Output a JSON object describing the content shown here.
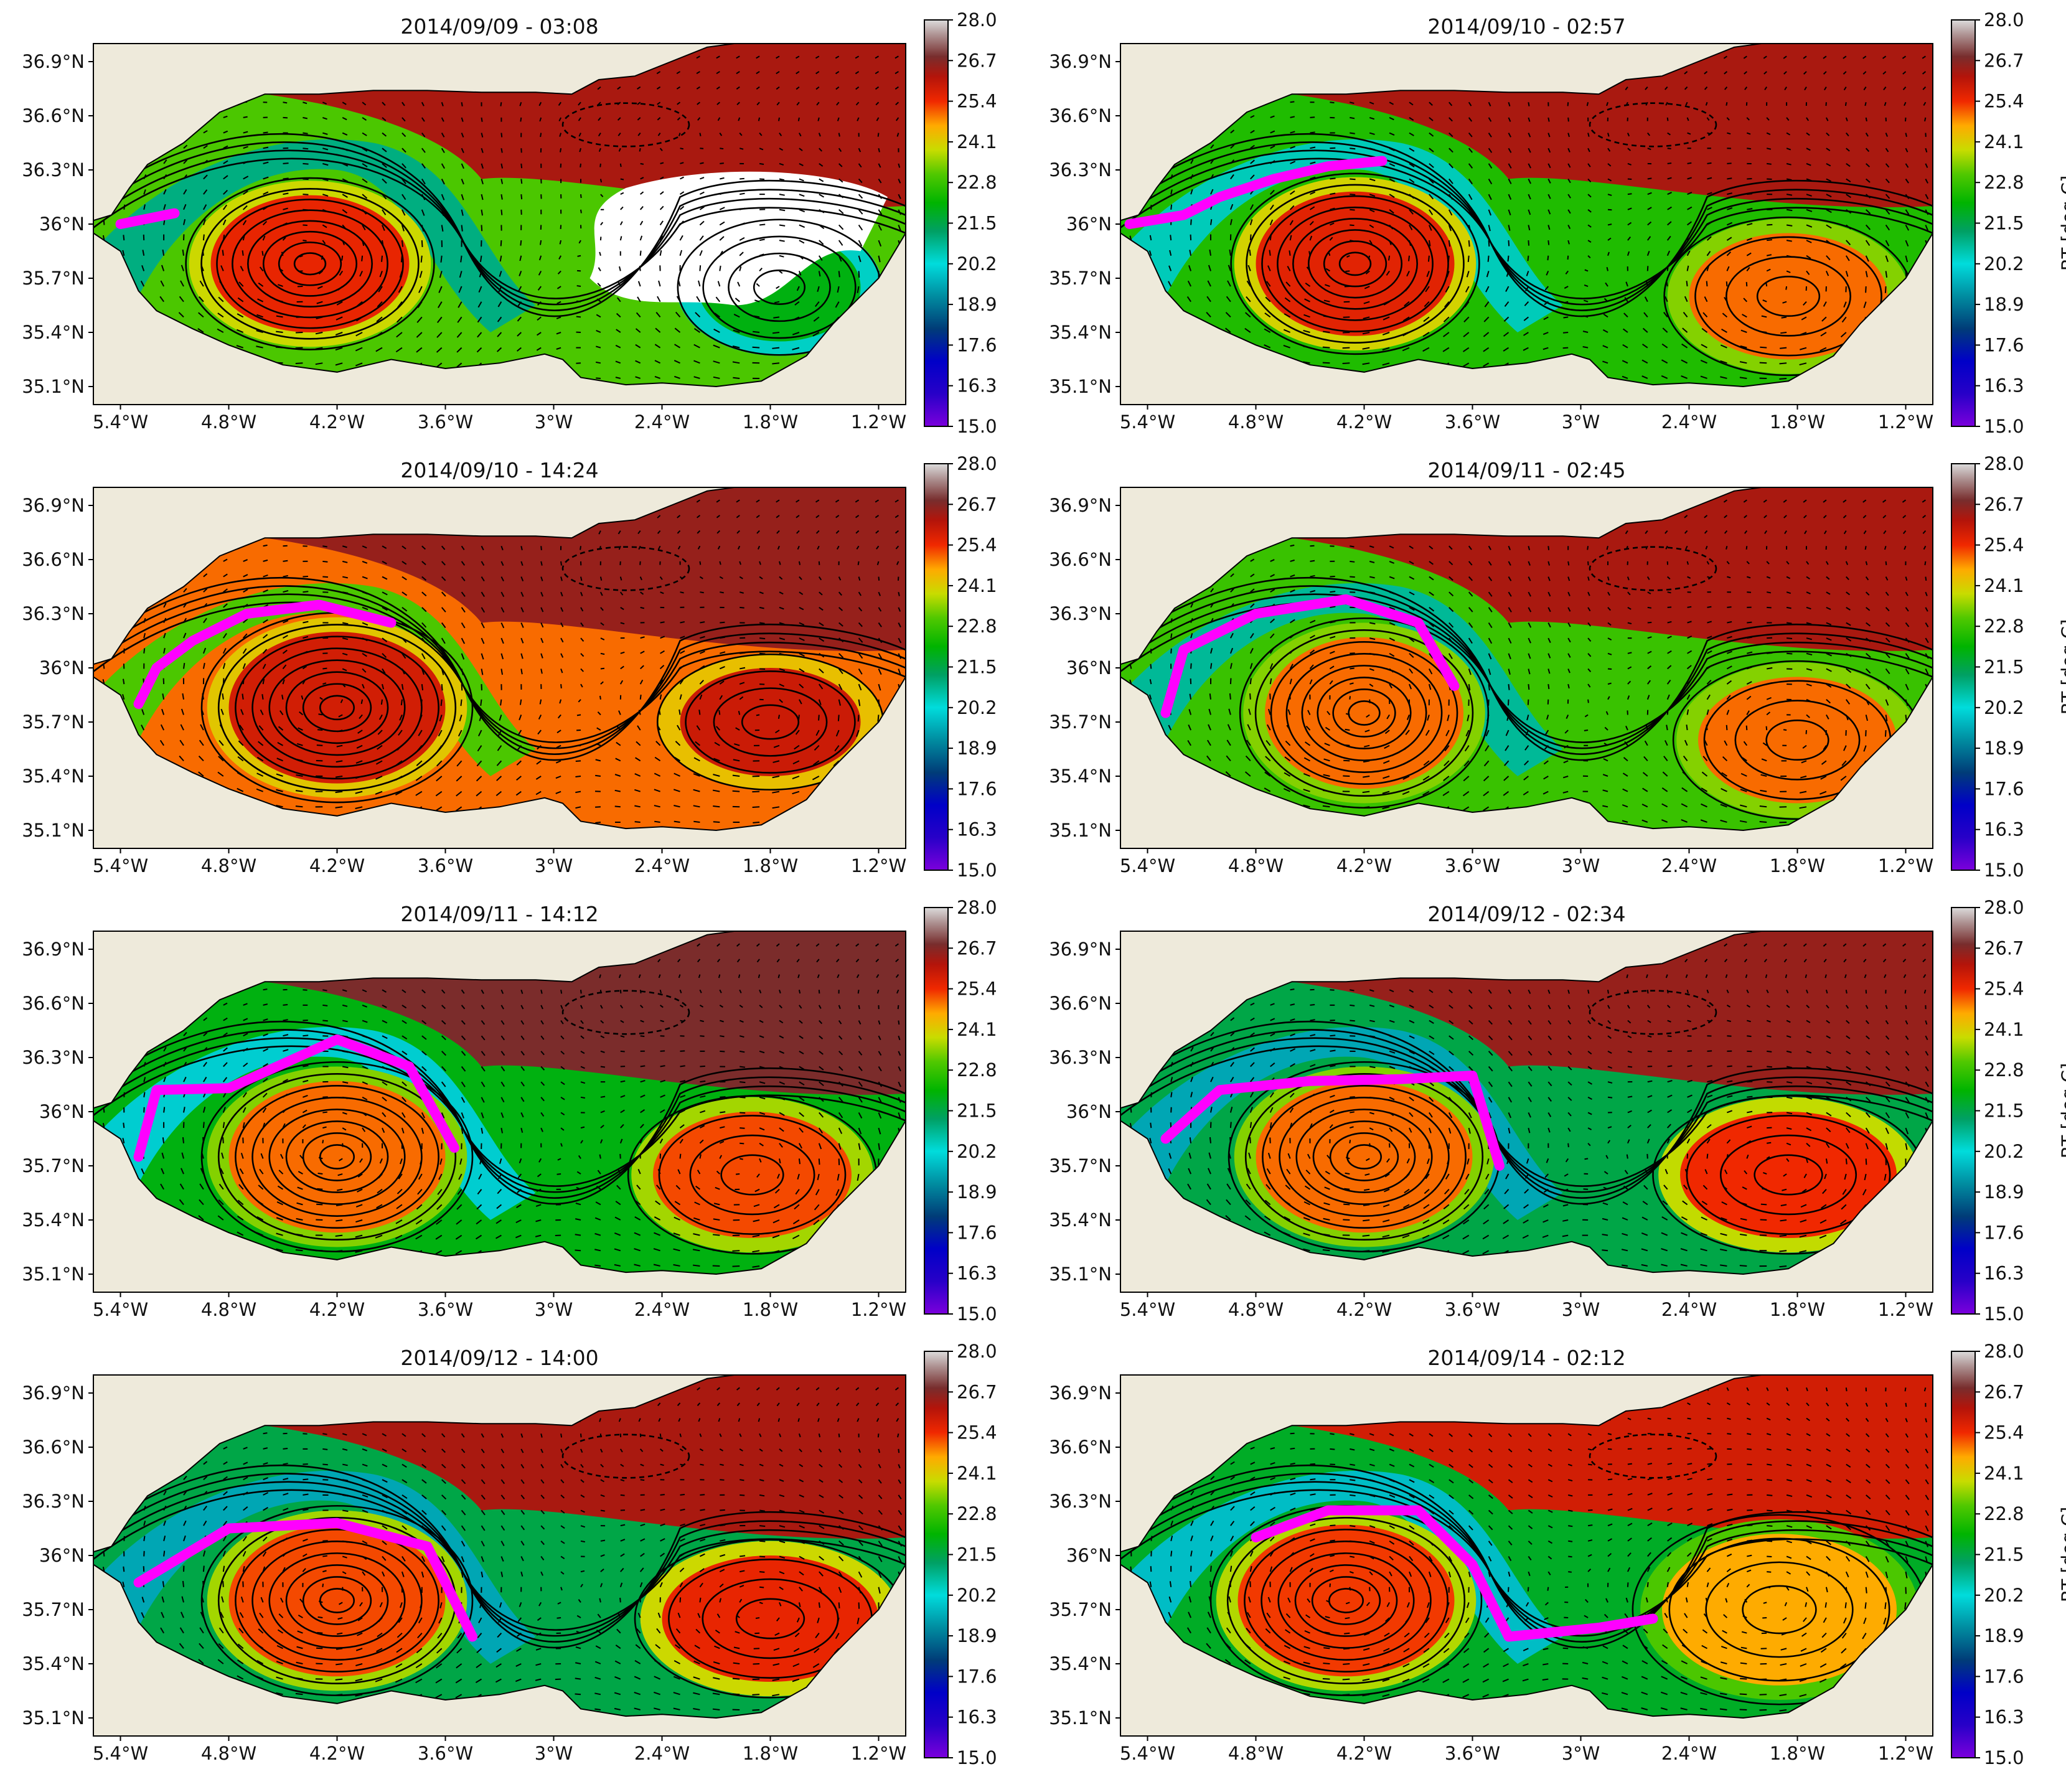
{
  "figure": {
    "colorbar_label": "BT [deg C]",
    "colorbar_ticks": [
      "28.0",
      "26.7",
      "25.4",
      "24.1",
      "22.8",
      "21.5",
      "20.2",
      "18.9",
      "17.6",
      "16.3",
      "15.0"
    ],
    "x_ticks": [
      "5.4°W",
      "4.8°W",
      "4.2°W",
      "3.6°W",
      "3°W",
      "2.4°W",
      "1.8°W",
      "1.2°W"
    ],
    "y_ticks": [
      "36.9°N",
      "36.6°N",
      "36.3°N",
      "36°N",
      "35.7°N",
      "35.4°N",
      "35.1°N"
    ],
    "colors": {
      "land": "#eeeadb",
      "drifter": "#ff00ff",
      "contour": "#000000"
    }
  },
  "chart_data": [
    {
      "type": "heatmap",
      "title": "2014/09/09 - 03:08",
      "colorbar_label": null,
      "xlim": [
        -5.55,
        -1.05
      ],
      "ylim": [
        35.0,
        37.0
      ],
      "vmin": 15.0,
      "vmax": 28.0,
      "eddies": [
        {
          "lon": -4.35,
          "lat": 35.78,
          "rx": 0.55,
          "ry": 0.38,
          "sst": 25.5
        },
        {
          "lon": -1.75,
          "lat": 35.65,
          "rx": 0.45,
          "ry": 0.3,
          "sst": 22.0
        }
      ],
      "front_sst": 21.0,
      "north_sst": 26.3,
      "cloud": true,
      "drifter": [
        [
          -5.4,
          36.0
        ],
        [
          -5.25,
          36.03
        ],
        [
          -5.1,
          36.06
        ]
      ]
    },
    {
      "type": "heatmap",
      "title": "2014/09/10 - 02:57",
      "colorbar_label": "BT [deg C]",
      "xlim": [
        -5.55,
        -1.05
      ],
      "ylim": [
        35.0,
        37.0
      ],
      "vmin": 15.0,
      "vmax": 28.0,
      "eddies": [
        {
          "lon": -4.25,
          "lat": 35.78,
          "rx": 0.55,
          "ry": 0.4,
          "sst": 25.6
        },
        {
          "lon": -1.85,
          "lat": 35.6,
          "rx": 0.55,
          "ry": 0.35,
          "sst": 25.0
        }
      ],
      "front_sst": 20.5,
      "north_sst": 26.3,
      "cloud": false,
      "drifter": [
        [
          -5.5,
          36.0
        ],
        [
          -5.2,
          36.05
        ],
        [
          -5.0,
          36.15
        ],
        [
          -4.7,
          36.25
        ],
        [
          -4.4,
          36.32
        ],
        [
          -4.1,
          36.35
        ]
      ]
    },
    {
      "type": "heatmap",
      "title": "2014/09/10 - 14:24",
      "colorbar_label": null,
      "xlim": [
        -5.55,
        -1.05
      ],
      "ylim": [
        35.0,
        37.0
      ],
      "vmin": 15.0,
      "vmax": 28.0,
      "eddies": [
        {
          "lon": -4.2,
          "lat": 35.78,
          "rx": 0.6,
          "ry": 0.42,
          "sst": 25.8
        },
        {
          "lon": -1.8,
          "lat": 35.7,
          "rx": 0.5,
          "ry": 0.3,
          "sst": 25.9
        }
      ],
      "front_sst": 23.0,
      "north_sst": 26.5,
      "cloud": false,
      "drifter": [
        [
          -5.3,
          35.8
        ],
        [
          -5.2,
          36.0
        ],
        [
          -5.0,
          36.15
        ],
        [
          -4.7,
          36.3
        ],
        [
          -4.3,
          36.35
        ],
        [
          -3.9,
          36.25
        ]
      ]
    },
    {
      "type": "heatmap",
      "title": "2014/09/11 - 02:45",
      "colorbar_label": "BT [deg C]",
      "xlim": [
        -5.55,
        -1.05
      ],
      "ylim": [
        35.0,
        37.0
      ],
      "vmin": 15.0,
      "vmax": 28.0,
      "eddies": [
        {
          "lon": -4.2,
          "lat": 35.75,
          "rx": 0.55,
          "ry": 0.42,
          "sst": 25.0
        },
        {
          "lon": -1.8,
          "lat": 35.6,
          "rx": 0.55,
          "ry": 0.35,
          "sst": 25.0
        }
      ],
      "front_sst": 20.8,
      "north_sst": 26.3,
      "cloud": false,
      "drifter": [
        [
          -5.3,
          35.75
        ],
        [
          -5.2,
          36.1
        ],
        [
          -4.8,
          36.3
        ],
        [
          -4.3,
          36.38
        ],
        [
          -3.9,
          36.25
        ],
        [
          -3.7,
          35.9
        ]
      ]
    },
    {
      "type": "heatmap",
      "title": "2014/09/11 - 14:12",
      "colorbar_label": null,
      "xlim": [
        -5.55,
        -1.05
      ],
      "ylim": [
        35.0,
        37.0
      ],
      "vmin": 15.0,
      "vmax": 28.0,
      "eddies": [
        {
          "lon": -4.2,
          "lat": 35.75,
          "rx": 0.6,
          "ry": 0.42,
          "sst": 25.0
        },
        {
          "lon": -1.9,
          "lat": 35.65,
          "rx": 0.55,
          "ry": 0.35,
          "sst": 25.2
        }
      ],
      "front_sst": 20.0,
      "north_sst": 26.8,
      "cloud": false,
      "drifter": [
        [
          -5.3,
          35.75
        ],
        [
          -5.2,
          36.12
        ],
        [
          -4.8,
          36.13
        ],
        [
          -4.2,
          36.4
        ],
        [
          -3.8,
          36.25
        ],
        [
          -3.55,
          35.8
        ]
      ]
    },
    {
      "type": "heatmap",
      "title": "2014/09/12 - 02:34",
      "colorbar_label": "BT [deg C]",
      "xlim": [
        -5.55,
        -1.05
      ],
      "ylim": [
        35.0,
        37.0
      ],
      "vmin": 15.0,
      "vmax": 28.0,
      "eddies": [
        {
          "lon": -4.2,
          "lat": 35.75,
          "rx": 0.6,
          "ry": 0.42,
          "sst": 25.0
        },
        {
          "lon": -1.85,
          "lat": 35.65,
          "rx": 0.6,
          "ry": 0.35,
          "sst": 25.4
        }
      ],
      "front_sst": 19.5,
      "north_sst": 26.5,
      "cloud": false,
      "drifter": [
        [
          -5.3,
          35.85
        ],
        [
          -5.0,
          36.12
        ],
        [
          -4.5,
          36.17
        ],
        [
          -4.0,
          36.18
        ],
        [
          -3.6,
          36.2
        ],
        [
          -3.45,
          35.7
        ]
      ]
    },
    {
      "type": "heatmap",
      "title": "2014/09/12 - 14:00",
      "colorbar_label": null,
      "xlim": [
        -5.55,
        -1.05
      ],
      "ylim": [
        35.0,
        37.0
      ],
      "vmin": 15.0,
      "vmax": 28.0,
      "eddies": [
        {
          "lon": -4.2,
          "lat": 35.75,
          "rx": 0.6,
          "ry": 0.42,
          "sst": 25.2
        },
        {
          "lon": -1.8,
          "lat": 35.65,
          "rx": 0.6,
          "ry": 0.35,
          "sst": 25.5
        }
      ],
      "front_sst": 19.5,
      "north_sst": 26.3,
      "cloud": false,
      "drifter": [
        [
          -5.3,
          35.85
        ],
        [
          -4.8,
          36.15
        ],
        [
          -4.2,
          36.18
        ],
        [
          -3.7,
          36.05
        ],
        [
          -3.45,
          35.55
        ]
      ]
    },
    {
      "type": "heatmap",
      "title": "2014/09/14 - 02:12",
      "colorbar_label": "BT [deg C]",
      "xlim": [
        -5.55,
        -1.05
      ],
      "ylim": [
        35.0,
        37.0
      ],
      "vmin": 15.0,
      "vmax": 28.0,
      "eddies": [
        {
          "lon": -4.3,
          "lat": 35.75,
          "rx": 0.6,
          "ry": 0.42,
          "sst": 25.3
        },
        {
          "lon": -1.9,
          "lat": 35.7,
          "rx": 0.65,
          "ry": 0.42,
          "sst": 24.6
        }
      ],
      "front_sst": 19.8,
      "north_sst": 25.8,
      "cloud": false,
      "drifter": [
        [
          -4.8,
          36.1
        ],
        [
          -4.4,
          36.25
        ],
        [
          -3.9,
          36.25
        ],
        [
          -3.6,
          35.95
        ],
        [
          -3.4,
          35.55
        ],
        [
          -2.9,
          35.6
        ],
        [
          -2.6,
          35.65
        ]
      ]
    }
  ]
}
